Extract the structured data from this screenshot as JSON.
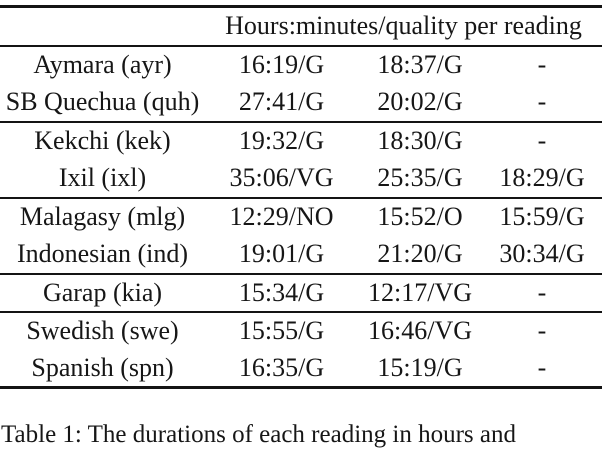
{
  "table": {
    "header": "Hours:minutes/quality per reading",
    "groups": [
      {
        "rows": [
          {
            "language": "Aymara (ayr)",
            "readings": [
              "16:19/G",
              "18:37/G",
              "-"
            ]
          },
          {
            "language": "SB Quechua (quh)",
            "readings": [
              "27:41/G",
              "20:02/G",
              "-"
            ]
          }
        ]
      },
      {
        "rows": [
          {
            "language": "Kekchi (kek)",
            "readings": [
              "19:32/G",
              "18:30/G",
              "-"
            ]
          },
          {
            "language": "Ixil (ixl)",
            "readings": [
              "35:06/VG",
              "25:35/G",
              "18:29/G"
            ]
          }
        ]
      },
      {
        "rows": [
          {
            "language": "Malagasy (mlg)",
            "readings": [
              "12:29/NO",
              "15:52/O",
              "15:59/G"
            ]
          },
          {
            "language": "Indonesian (ind)",
            "readings": [
              "19:01/G",
              "21:20/G",
              "30:34/G"
            ]
          }
        ]
      },
      {
        "rows": [
          {
            "language": "Garap (kia)",
            "readings": [
              "15:34/G",
              "12:17/VG",
              "-"
            ]
          }
        ]
      },
      {
        "rows": [
          {
            "language": "Swedish (swe)",
            "readings": [
              "15:55/G",
              "16:46/VG",
              "-"
            ]
          },
          {
            "language": "Spanish (spn)",
            "readings": [
              "16:35/G",
              "15:19/G",
              "-"
            ]
          }
        ]
      }
    ]
  },
  "caption": "Table 1: The durations of each reading in hours and",
  "colors": {
    "background": "#ffffff",
    "text": "#161616",
    "rule": "#141414"
  }
}
